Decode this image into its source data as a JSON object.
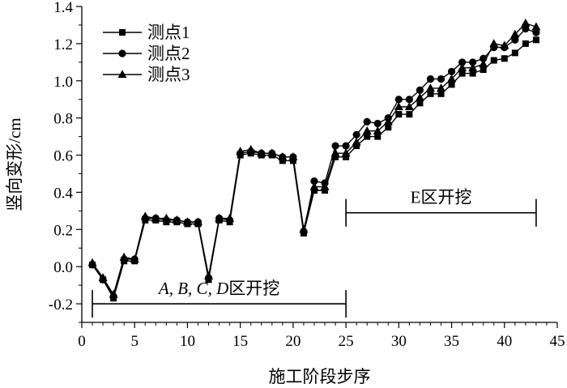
{
  "chart_data": {
    "type": "line",
    "title": "",
    "xlabel": "施工阶段步序",
    "ylabel": "竖向变形/cm",
    "xlim": [
      0,
      45
    ],
    "ylim": [
      -0.3,
      1.4
    ],
    "xticks": [
      0,
      5,
      10,
      15,
      20,
      25,
      30,
      35,
      40,
      45
    ],
    "yticks": [
      -0.2,
      0.0,
      0.2,
      0.4,
      0.6,
      0.8,
      1.0,
      1.2,
      1.4
    ],
    "xtick_labels": [
      "0",
      "5",
      "10",
      "15",
      "20",
      "25",
      "30",
      "35",
      "40",
      "45"
    ],
    "ytick_labels": [
      "-0.2",
      "0.0",
      "0.2",
      "0.4",
      "0.6",
      "0.8",
      "1.0",
      "1.2",
      "1.4"
    ],
    "grid": false,
    "legend_position": "top-left",
    "x": [
      1,
      2,
      3,
      4,
      5,
      6,
      7,
      8,
      9,
      10,
      11,
      12,
      13,
      14,
      15,
      16,
      17,
      18,
      19,
      20,
      21,
      22,
      23,
      24,
      25,
      26,
      27,
      28,
      29,
      30,
      31,
      32,
      33,
      34,
      35,
      36,
      37,
      38,
      39,
      40,
      41,
      42,
      43
    ],
    "series": [
      {
        "name": "测点1",
        "marker": "square",
        "values": [
          0.01,
          -0.07,
          -0.17,
          0.03,
          0.03,
          0.25,
          0.25,
          0.24,
          0.24,
          0.23,
          0.23,
          -0.07,
          0.25,
          0.24,
          0.6,
          0.61,
          0.6,
          0.6,
          0.57,
          0.57,
          0.18,
          0.41,
          0.41,
          0.59,
          0.59,
          0.65,
          0.7,
          0.7,
          0.75,
          0.82,
          0.82,
          0.88,
          0.93,
          0.93,
          0.98,
          1.04,
          1.04,
          1.06,
          1.11,
          1.12,
          1.15,
          1.2,
          1.22
        ]
      },
      {
        "name": "测点2",
        "marker": "circle",
        "values": [
          0.01,
          -0.07,
          -0.16,
          0.04,
          0.04,
          0.26,
          0.26,
          0.25,
          0.25,
          0.24,
          0.24,
          -0.06,
          0.26,
          0.25,
          0.61,
          0.62,
          0.61,
          0.61,
          0.59,
          0.59,
          0.19,
          0.46,
          0.45,
          0.65,
          0.65,
          0.71,
          0.78,
          0.77,
          0.8,
          0.9,
          0.9,
          0.95,
          1.01,
          1.01,
          1.05,
          1.1,
          1.1,
          1.12,
          1.18,
          1.18,
          1.22,
          1.28,
          1.26
        ]
      },
      {
        "name": "测点3",
        "marker": "triangle",
        "values": [
          0.02,
          -0.06,
          -0.15,
          0.05,
          0.04,
          0.27,
          0.26,
          0.26,
          0.25,
          0.24,
          0.24,
          -0.05,
          0.26,
          0.26,
          0.62,
          0.63,
          0.61,
          0.61,
          0.59,
          0.59,
          0.2,
          0.43,
          0.43,
          0.61,
          0.61,
          0.67,
          0.73,
          0.73,
          0.78,
          0.86,
          0.86,
          0.91,
          0.96,
          0.96,
          1.01,
          1.07,
          1.07,
          1.09,
          1.2,
          1.19,
          1.25,
          1.31,
          1.29
        ]
      }
    ],
    "annotations": [
      {
        "text_parts": [
          {
            "text": "A, B, C, D",
            "italic": true
          },
          {
            "text": "区开挖",
            "italic": false
          }
        ],
        "x_range": [
          1,
          25
        ],
        "y": -0.2
      },
      {
        "text_parts": [
          {
            "text": "E区开挖",
            "italic": false
          }
        ],
        "x_range": [
          25,
          43
        ],
        "y": 0.29
      }
    ]
  }
}
